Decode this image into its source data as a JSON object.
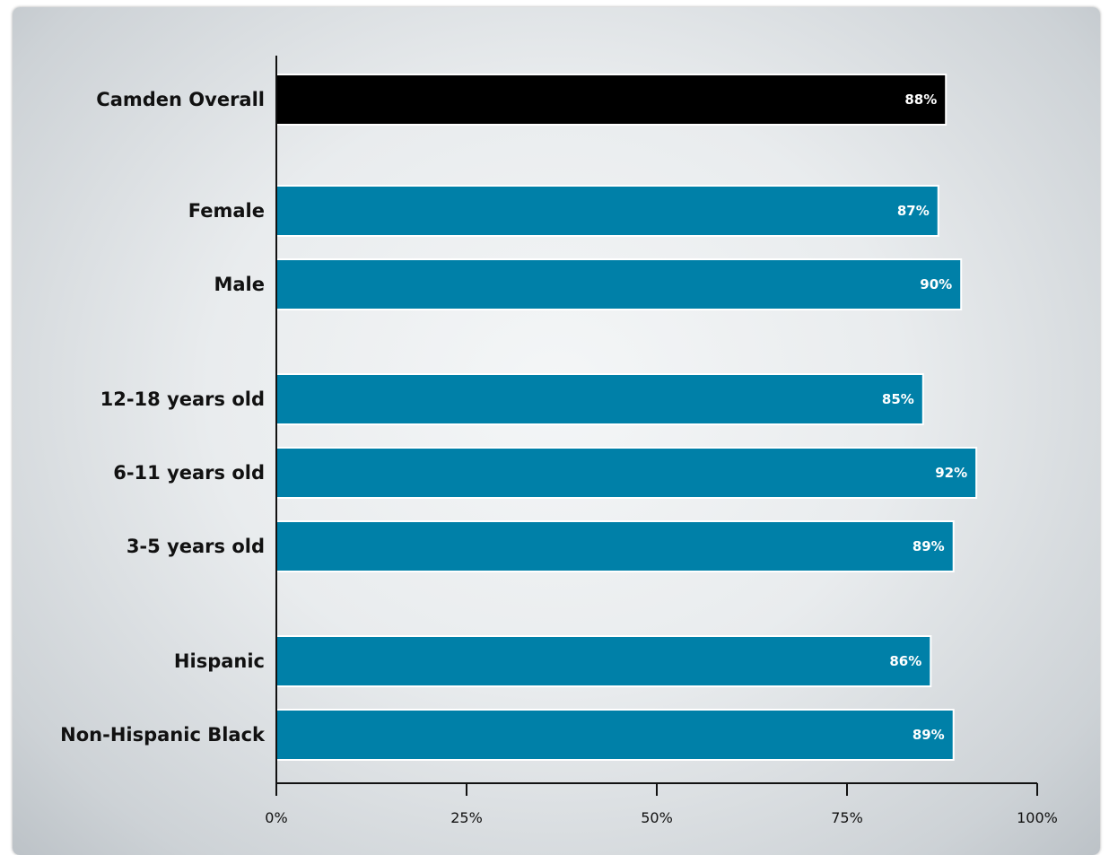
{
  "chart_data": {
    "type": "bar",
    "orientation": "horizontal",
    "categories": [
      "Camden Overall",
      "Female",
      "Male",
      "12-18 years old",
      "6-11 years old",
      "3-5 years old",
      "Hispanic",
      "Non-Hispanic Black"
    ],
    "values": [
      88,
      87,
      90,
      85,
      92,
      89,
      86,
      89
    ],
    "value_labels": [
      "88%",
      "87%",
      "90%",
      "85%",
      "92%",
      "89%",
      "86%",
      "89%"
    ],
    "xlim": [
      0,
      100
    ],
    "xticks": [
      0,
      25,
      50,
      75,
      100
    ],
    "xtick_labels": [
      "0%",
      "25%",
      "50%",
      "75%",
      "100%"
    ],
    "colors": {
      "highlight": "#000000",
      "bars": "#0080a8",
      "bar_outline": "#ffffff"
    },
    "highlight_category": "Camden Overall",
    "grid": false,
    "legend": "none"
  }
}
